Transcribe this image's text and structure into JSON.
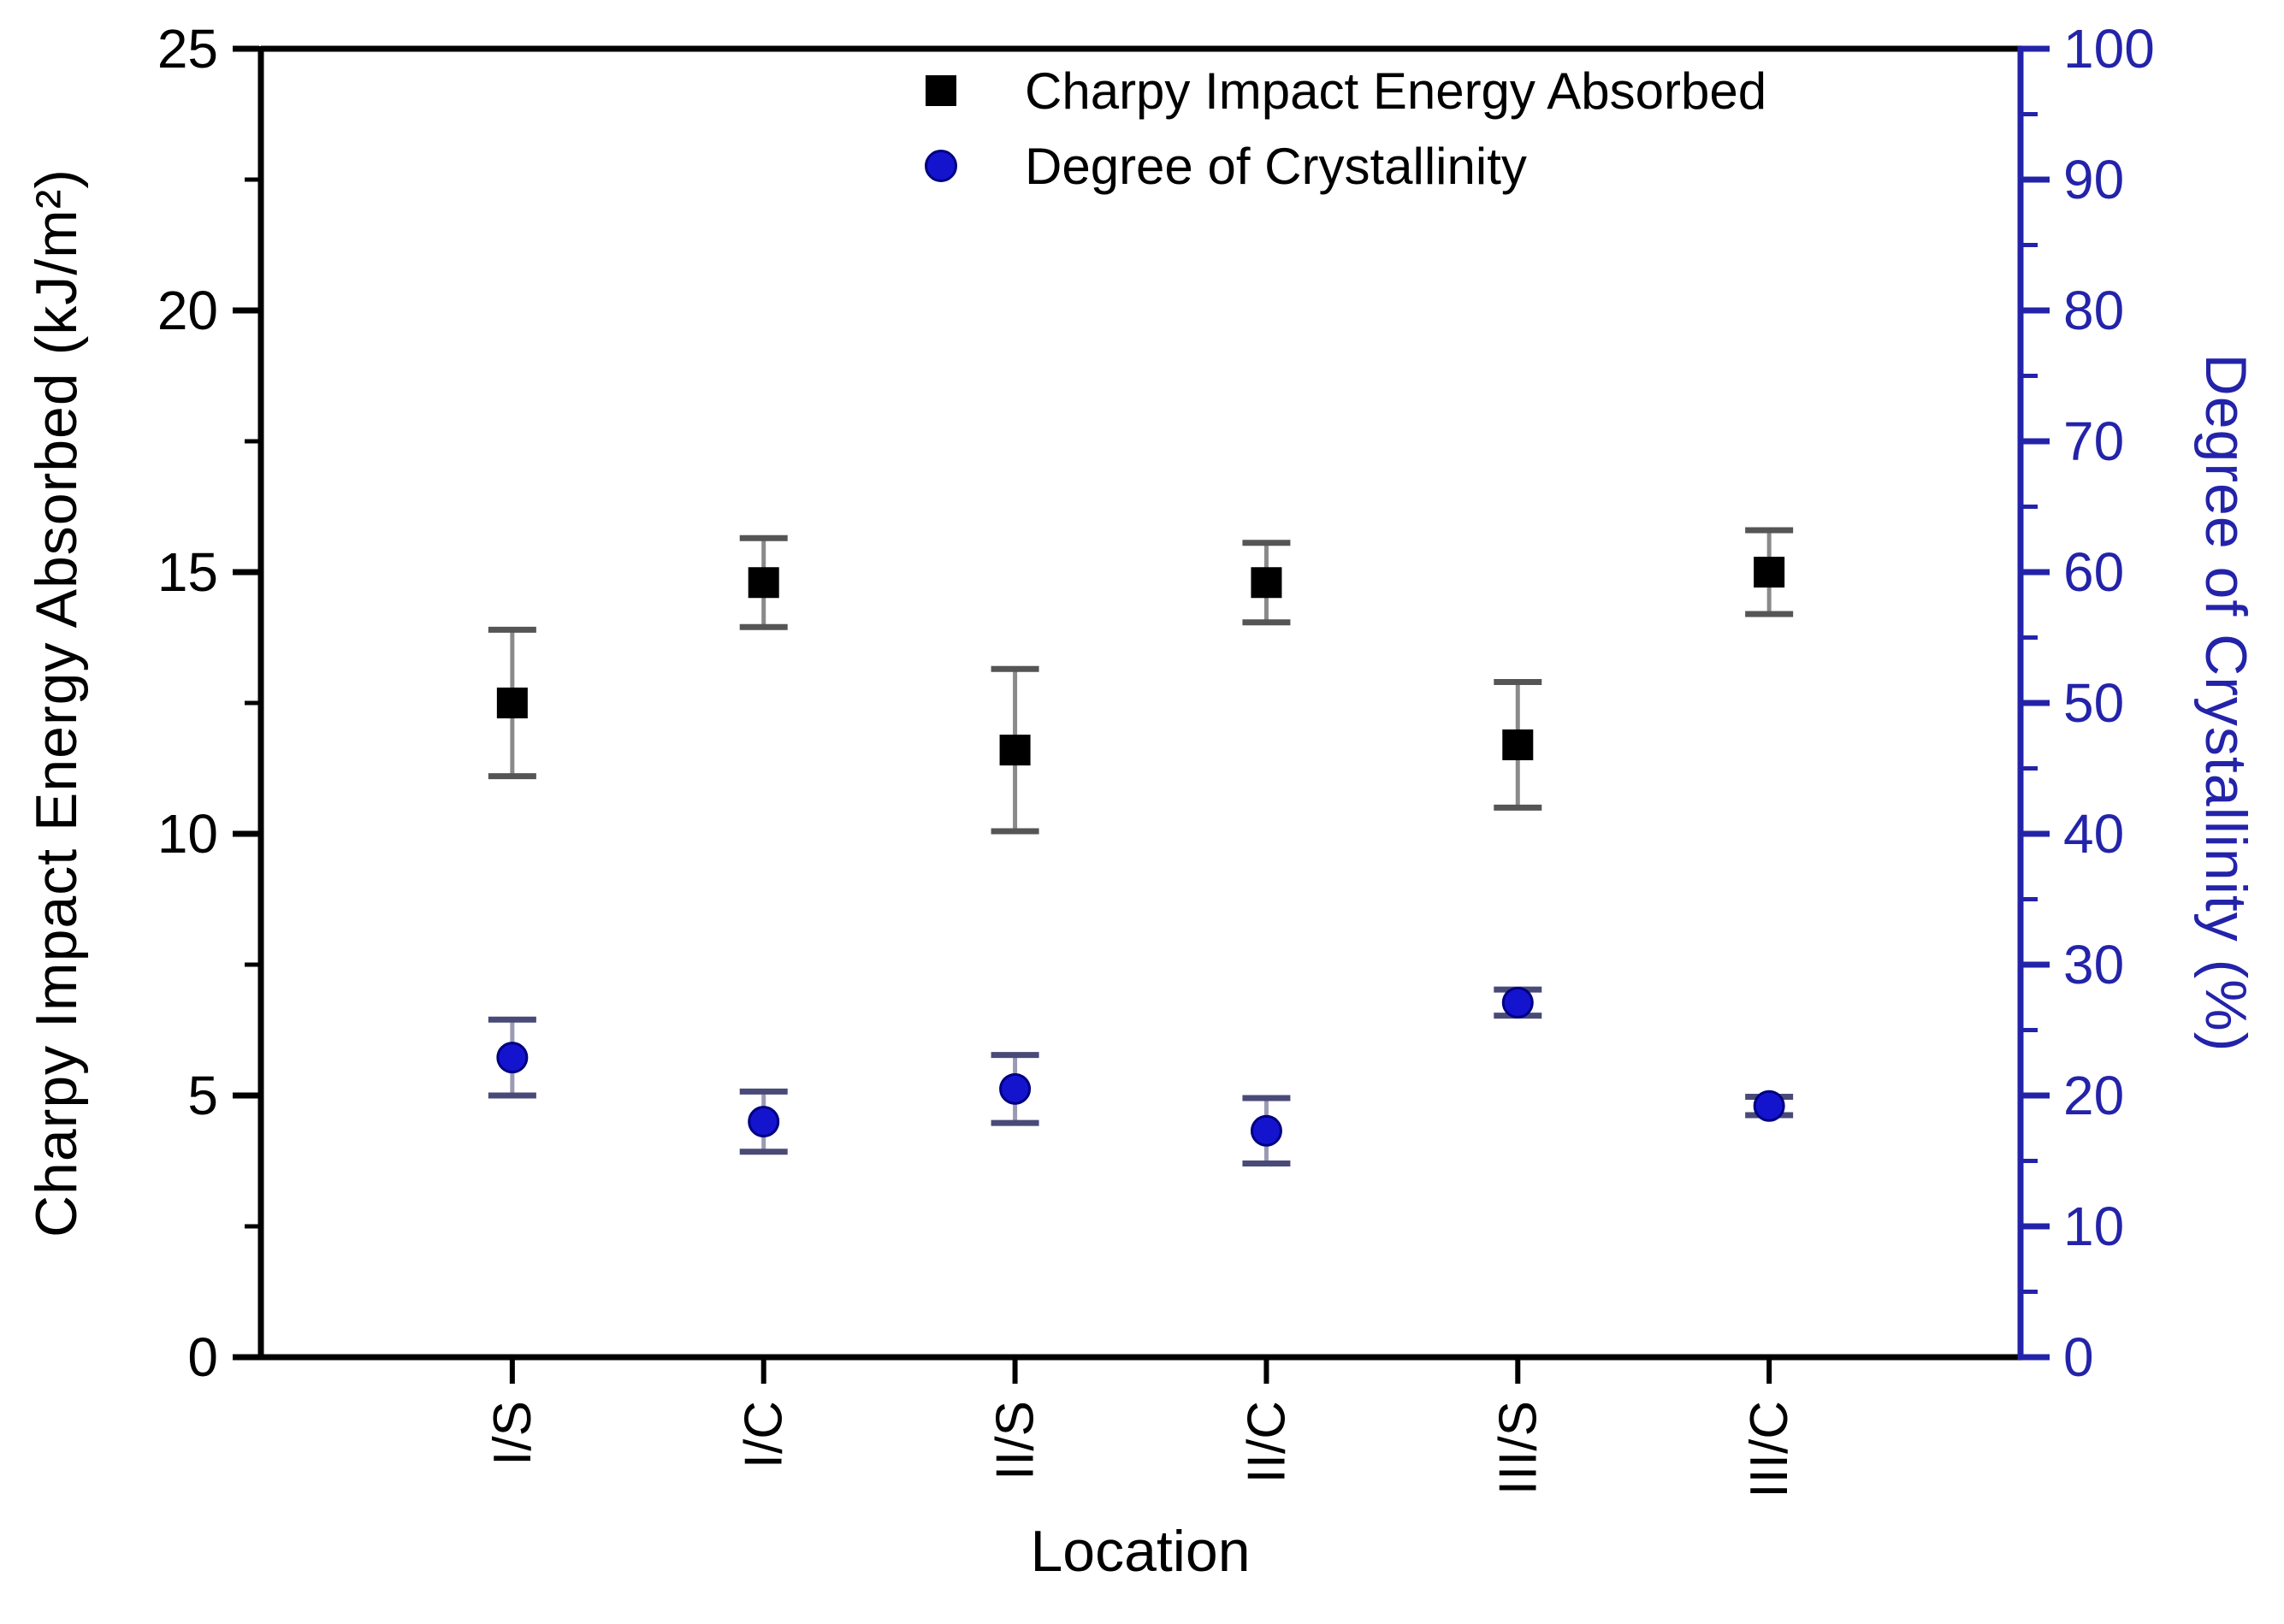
{
  "page": {
    "background": "#ffffff"
  },
  "chart_data": {
    "type": "scatter",
    "title": "",
    "categories": [
      "I/S",
      "I/C",
      "II/S",
      "II/C",
      "III/S",
      "III/C"
    ],
    "xlabel": "Location",
    "y_left": {
      "label": "Charpy Impact Energy Absorbed (kJ/m²)",
      "min": 0,
      "max": 25,
      "major_step": 5,
      "minor_step": 2.5,
      "tick_labels": [
        "0",
        "5",
        "10",
        "15",
        "20",
        "25"
      ],
      "color": "#000000"
    },
    "y_right": {
      "label": "Degree of Crystallinity (%)",
      "min": 0,
      "max": 100,
      "major_step": 10,
      "minor_step": 5,
      "tick_labels": [
        "0",
        "10",
        "20",
        "30",
        "40",
        "50",
        "60",
        "70",
        "80",
        "90",
        "100"
      ],
      "color": "#2323aa"
    },
    "series": [
      {
        "name": "Charpy Impact Energy Absorbed",
        "axis": "left",
        "marker": "square",
        "color": "#000000",
        "marker_edge": "#000000",
        "error_line_color": "#8a8a8a",
        "error_cap_color": "#555555",
        "values": [
          12.5,
          14.8,
          11.6,
          14.8,
          11.7,
          15.0
        ],
        "errors": [
          1.4,
          0.85,
          1.55,
          0.76,
          1.2,
          0.8
        ]
      },
      {
        "name": "Degree of Crystallinity",
        "axis": "right",
        "marker": "circle",
        "color": "#1414cf",
        "marker_edge": "#000080",
        "error_line_color": "#9a9ab4",
        "error_cap_color": "#4a4a78",
        "values": [
          22.9,
          18.0,
          20.5,
          17.3,
          27.1,
          19.2
        ],
        "errors": [
          2.9,
          2.3,
          2.6,
          2.5,
          1.0,
          0.7
        ]
      }
    ],
    "legend_position": "top-center",
    "grid": false
  }
}
